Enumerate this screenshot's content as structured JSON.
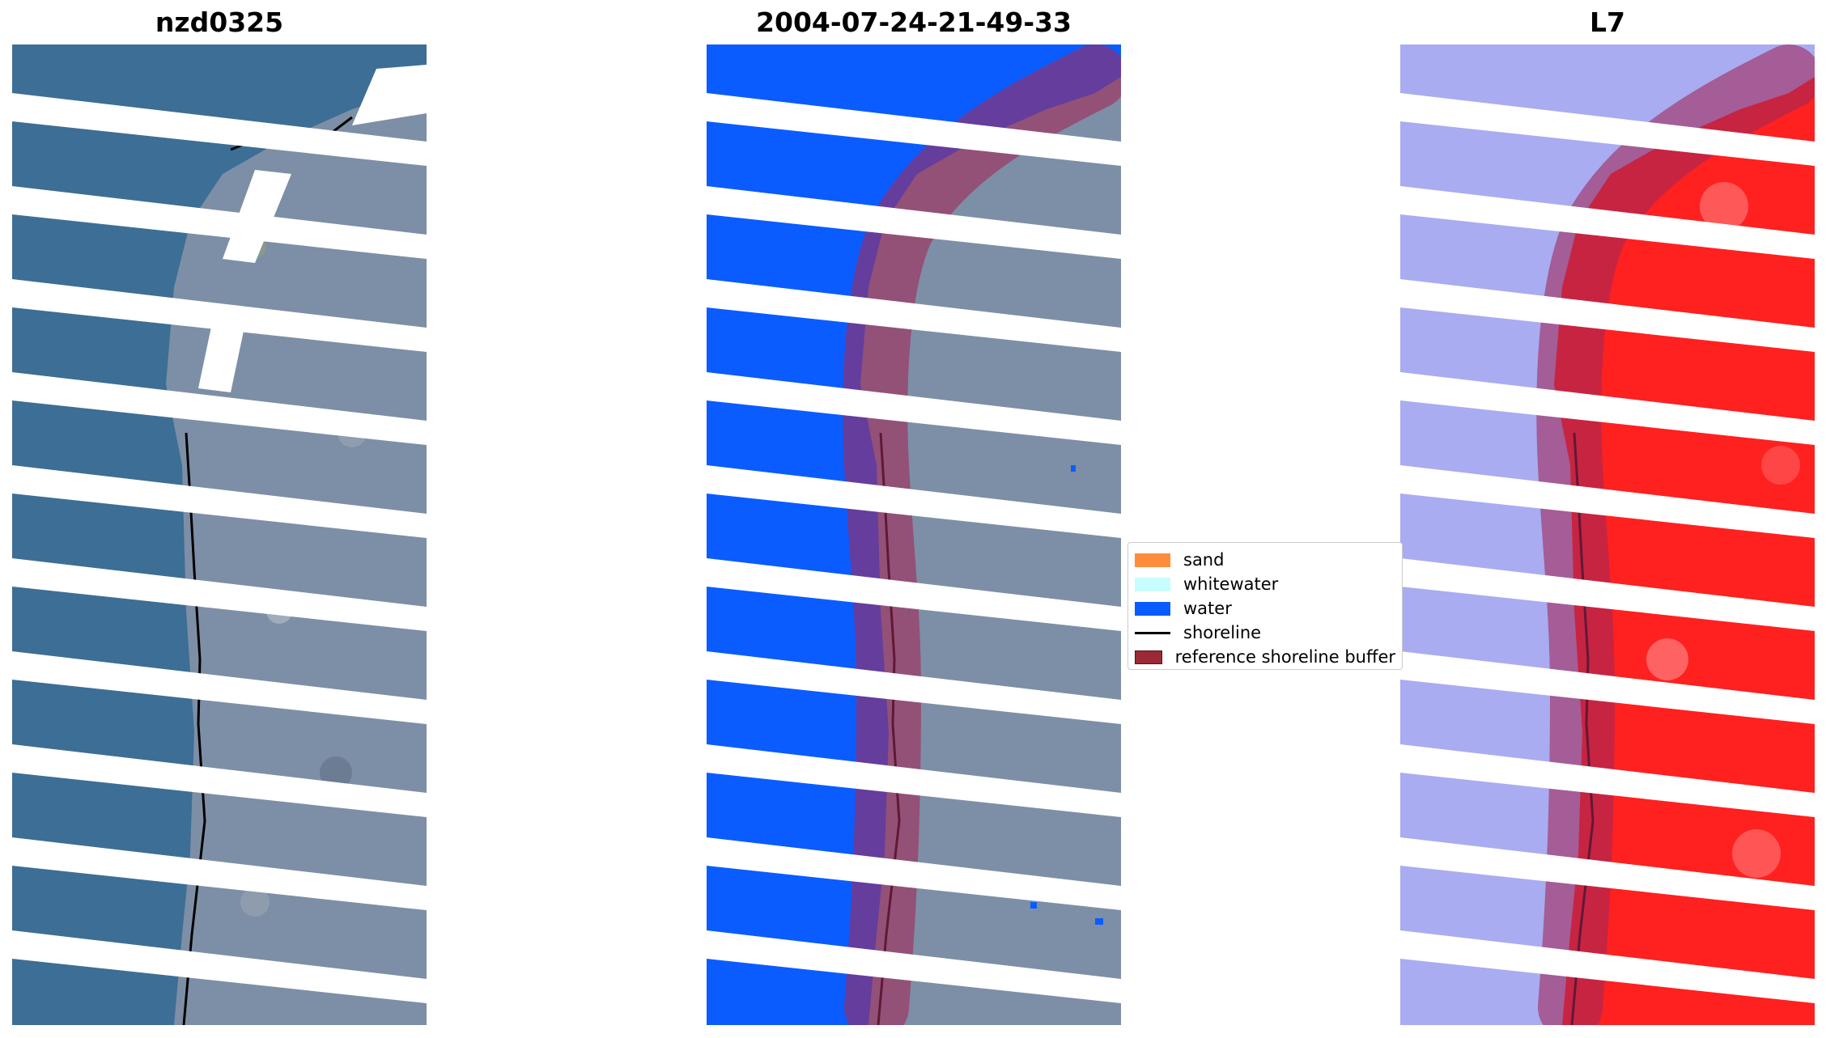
{
  "panels": {
    "left": {
      "title": "nzd0325",
      "image": "rgb-satellite-image-icon"
    },
    "middle": {
      "title": "2004-07-24-21-49-33",
      "image": "classified-image-icon"
    },
    "right": {
      "title": "L7",
      "image": "mndwi-index-image-icon"
    }
  },
  "legend": {
    "items": [
      {
        "label": "sand",
        "color": "#ff8c3a",
        "kind": "patch"
      },
      {
        "label": "whitewater",
        "color": "#c8fdfd",
        "kind": "patch"
      },
      {
        "label": "water",
        "color": "#0a5cff",
        "kind": "patch"
      },
      {
        "label": "shoreline",
        "color": "#000000",
        "kind": "line"
      },
      {
        "label": "reference shoreline buffer",
        "color": "#9b2a36",
        "kind": "patch"
      }
    ]
  },
  "colors": {
    "sea_rgb": "#3d6e95",
    "land_rgb": "#7d8fa6",
    "water_class": "#0a5cff",
    "buffer": "#a2285a",
    "index_water": "#a9acf1",
    "index_land": "#ff2020"
  }
}
